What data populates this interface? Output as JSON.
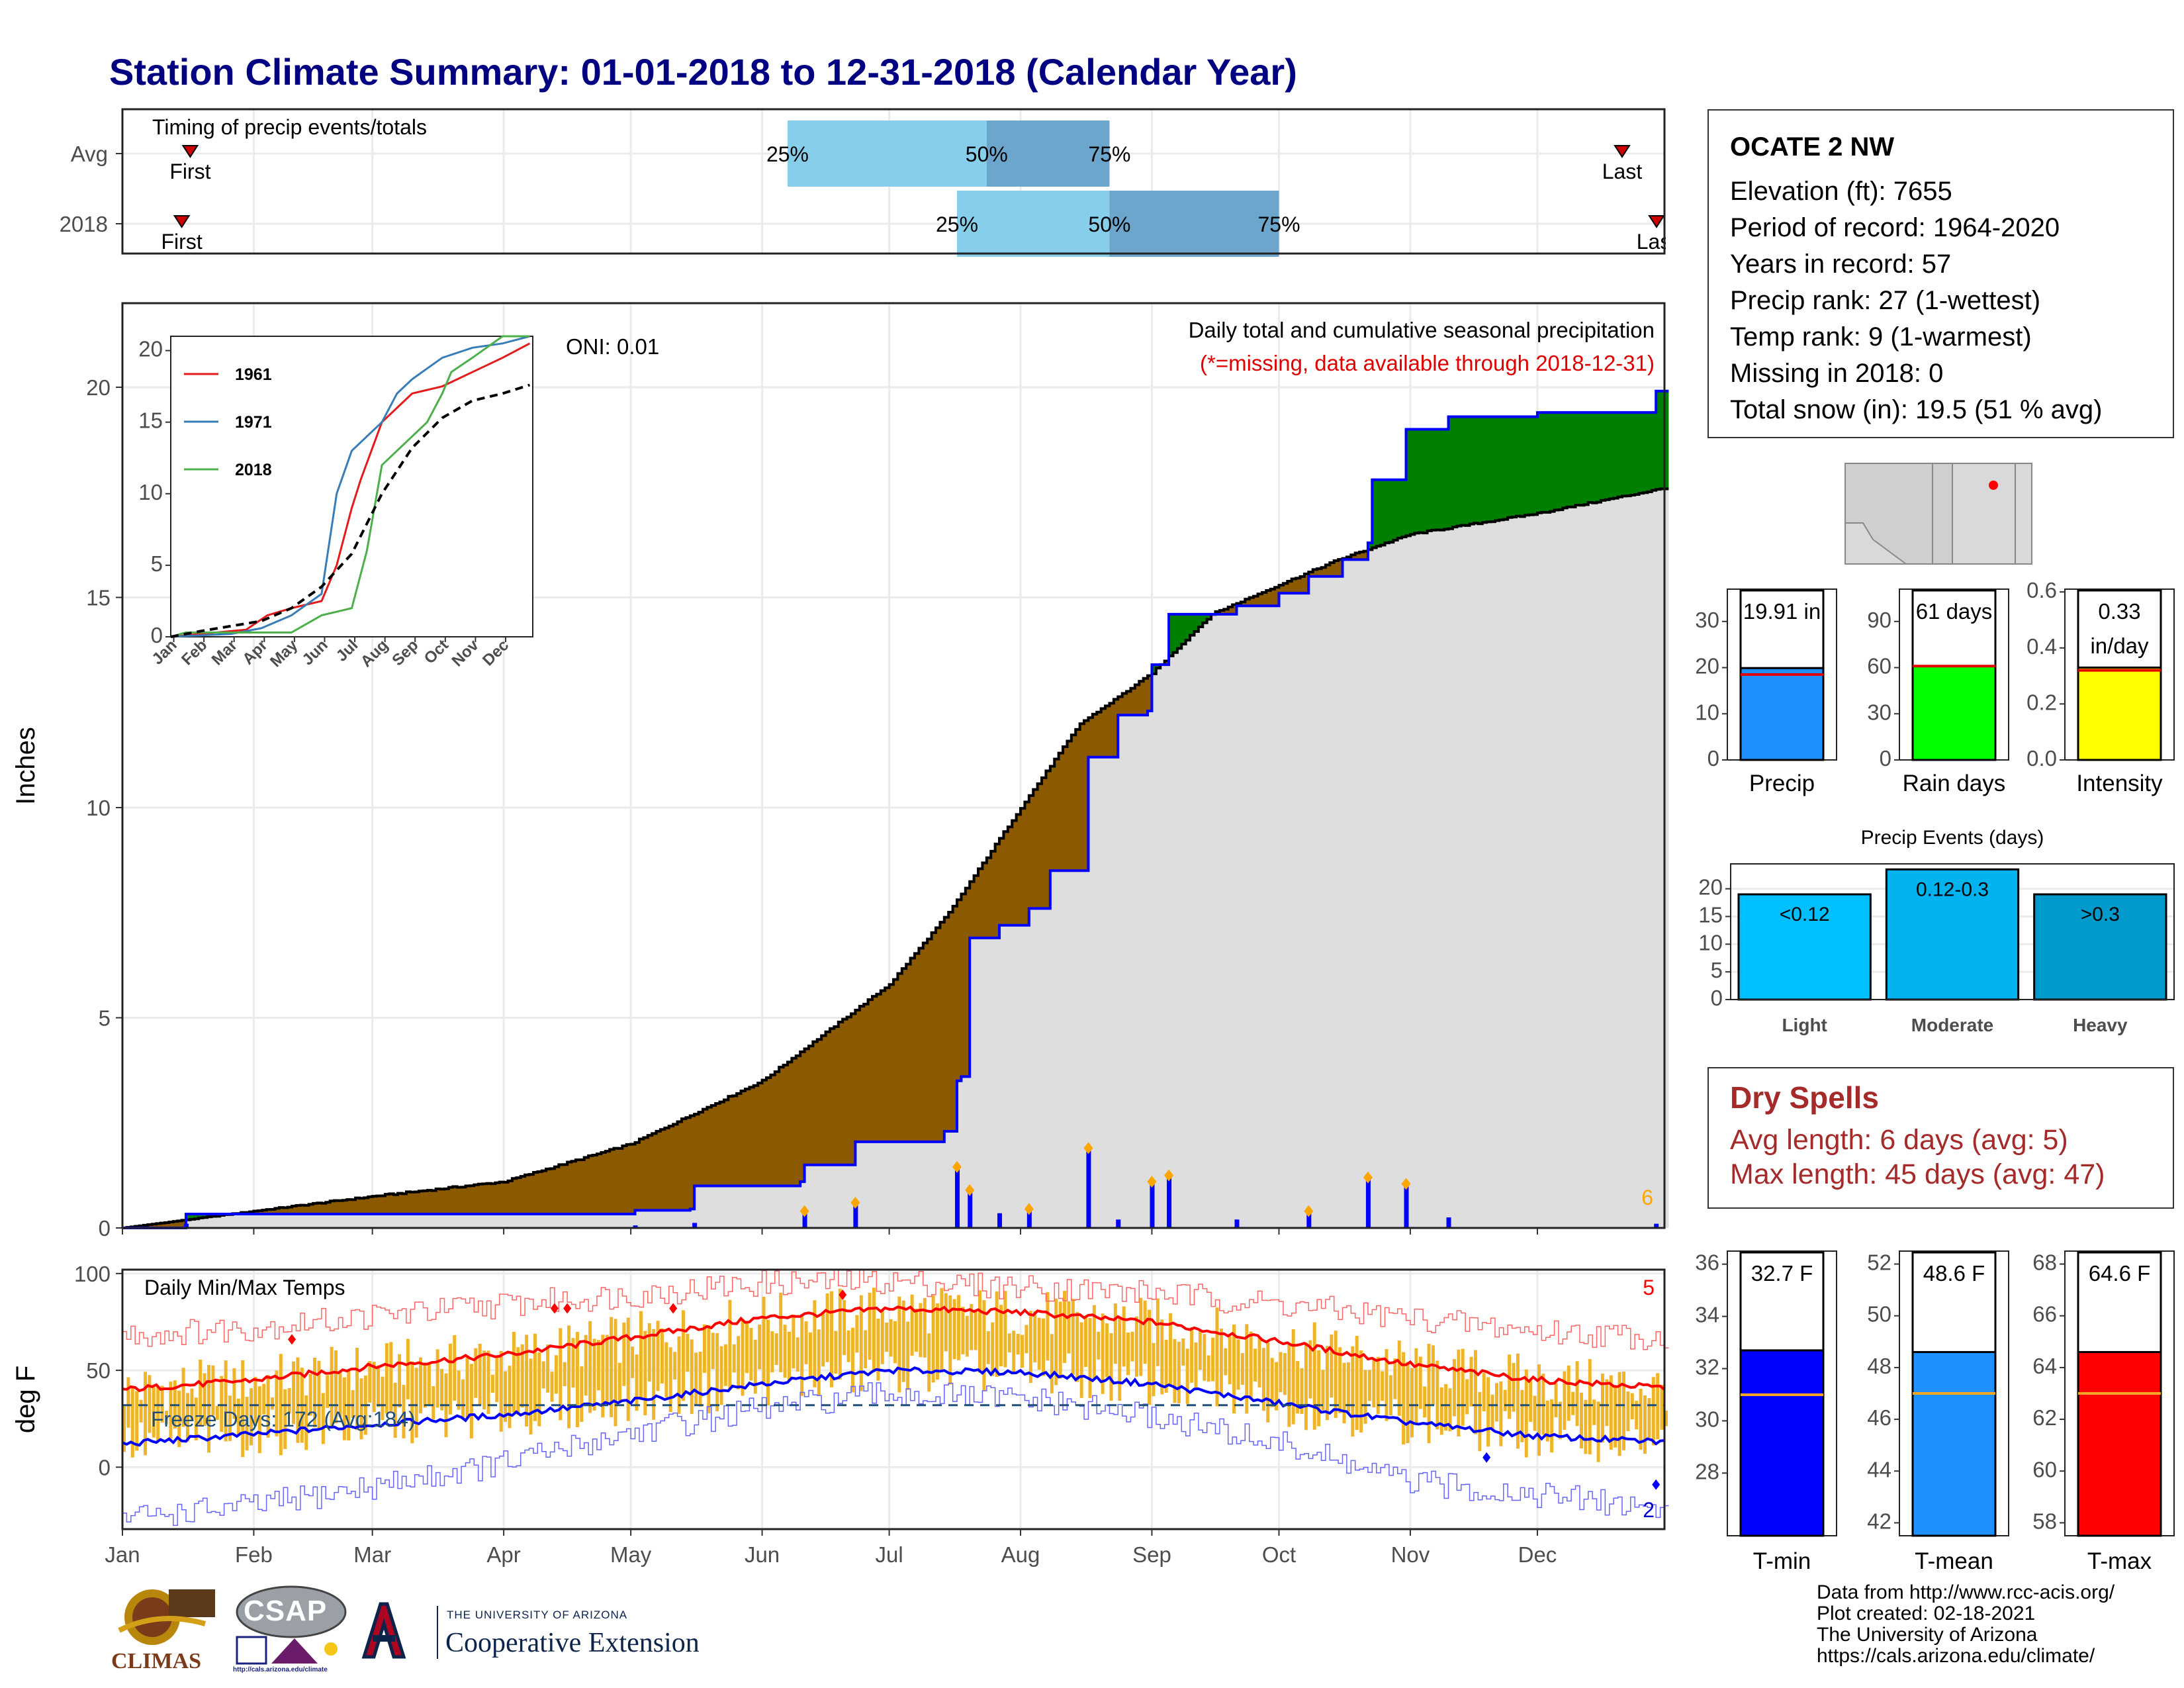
{
  "title": "Station Climate Summary: 01-01-2018 to 12-31-2018 (Calendar Year)",
  "timing": {
    "title": "Timing of precip events/totals",
    "row_labels": [
      "Avg",
      "2018"
    ],
    "pct_labels": [
      "25%",
      "50%",
      "75%"
    ],
    "first_label": "First",
    "last_label": "Last",
    "rows": [
      {
        "name": "Avg",
        "first": "01-17",
        "p25": "06-07",
        "p50": "07-24",
        "p75": "08-22",
        "last": "12-21"
      },
      {
        "name": "2018",
        "first": "01-15",
        "p25": "07-17",
        "p50": "08-22",
        "p75": "10-01",
        "last": "12-31"
      }
    ],
    "colors": {
      "light": "#87ceeb",
      "mid": "#6ca6cd",
      "marker": "#cc0000"
    }
  },
  "chart_data": [
    {
      "type": "area",
      "title": "Daily total and cumulative seasonal precipitation",
      "subtitle": "(*=missing, data available through 2018-12-31)",
      "ylabel": "Inches",
      "ylim": [
        0,
        22
      ],
      "yticks": [
        0,
        5,
        10,
        15,
        20
      ],
      "xlim": [
        "2018-01-01",
        "2018-12-31"
      ],
      "x_tick_labels": [
        "Jan",
        "Feb",
        "Mar",
        "Apr",
        "May",
        "Jun",
        "Jul",
        "Aug",
        "Sep",
        "Oct",
        "Nov",
        "Dec"
      ],
      "oni_label": "ONI: 0.01",
      "corner_count": "6",
      "series": [
        {
          "kind": "average_cumulative",
          "color": "#000000",
          "points": [
            [
              "2018-01-01",
              0.0
            ],
            [
              "2018-02-01",
              0.4
            ],
            [
              "2018-03-01",
              0.75
            ],
            [
              "2018-04-01",
              1.1
            ],
            [
              "2018-05-01",
              2.0
            ],
            [
              "2018-06-01",
              3.5
            ],
            [
              "2018-07-01",
              5.8
            ],
            [
              "2018-07-15",
              7.5
            ],
            [
              "2018-08-01",
              10.0
            ],
            [
              "2018-08-15",
              12.0
            ],
            [
              "2018-09-01",
              13.2
            ],
            [
              "2018-09-15",
              14.6
            ],
            [
              "2018-10-01",
              15.3
            ],
            [
              "2018-10-15",
              15.9
            ],
            [
              "2018-11-01",
              16.5
            ],
            [
              "2018-12-01",
              17.0
            ],
            [
              "2018-12-31",
              17.6
            ]
          ]
        },
        {
          "kind": "cumulative_2018",
          "color": "#0000ff",
          "points": [
            [
              "2018-01-01",
              0.0
            ],
            [
              "2018-01-15",
              0.0
            ],
            [
              "2018-01-16",
              0.33
            ],
            [
              "2018-05-01",
              0.33
            ],
            [
              "2018-05-02",
              0.42
            ],
            [
              "2018-05-15",
              0.45
            ],
            [
              "2018-05-16",
              1.0
            ],
            [
              "2018-06-10",
              1.1
            ],
            [
              "2018-06-11",
              1.5
            ],
            [
              "2018-06-22",
              1.5
            ],
            [
              "2018-06-23",
              2.05
            ],
            [
              "2018-07-13",
              2.05
            ],
            [
              "2018-07-14",
              2.3
            ],
            [
              "2018-07-17",
              3.5
            ],
            [
              "2018-07-18",
              3.6
            ],
            [
              "2018-07-20",
              6.9
            ],
            [
              "2018-07-27",
              7.2
            ],
            [
              "2018-08-03",
              7.6
            ],
            [
              "2018-08-08",
              8.5
            ],
            [
              "2018-08-17",
              11.2
            ],
            [
              "2018-08-24",
              12.2
            ],
            [
              "2018-08-31",
              12.3
            ],
            [
              "2018-09-01",
              13.4
            ],
            [
              "2018-09-05",
              14.6
            ],
            [
              "2018-09-20",
              14.6
            ],
            [
              "2018-09-21",
              14.8
            ],
            [
              "2018-10-01",
              15.1
            ],
            [
              "2018-10-08",
              15.5
            ],
            [
              "2018-10-16",
              15.9
            ],
            [
              "2018-10-22",
              16.3
            ],
            [
              "2018-10-23",
              17.8
            ],
            [
              "2018-10-30",
              17.8
            ],
            [
              "2018-10-31",
              19.0
            ],
            [
              "2018-11-09",
              19.0
            ],
            [
              "2018-11-10",
              19.3
            ],
            [
              "2018-12-01",
              19.4
            ],
            [
              "2018-12-28",
              19.4
            ],
            [
              "2018-12-29",
              19.91
            ]
          ]
        },
        {
          "kind": "above_average_fill",
          "color": "#008000"
        },
        {
          "kind": "below_average_fill",
          "color": "#8b5a00"
        }
      ],
      "daily_bars": {
        "color": "#0000ff",
        "marker_color": "#ffa500",
        "values": [
          [
            "2018-01-16",
            0.1
          ],
          [
            "2018-05-02",
            0.06
          ],
          [
            "2018-05-16",
            0.12
          ],
          [
            "2018-06-11",
            0.4
          ],
          [
            "2018-06-23",
            0.6
          ],
          [
            "2018-07-17",
            1.45
          ],
          [
            "2018-07-20",
            0.9
          ],
          [
            "2018-07-27",
            0.35
          ],
          [
            "2018-08-03",
            0.45
          ],
          [
            "2018-08-17",
            1.9
          ],
          [
            "2018-08-24",
            0.2
          ],
          [
            "2018-09-01",
            1.1
          ],
          [
            "2018-09-05",
            1.25
          ],
          [
            "2018-09-21",
            0.2
          ],
          [
            "2018-10-08",
            0.4
          ],
          [
            "2018-10-22",
            1.2
          ],
          [
            "2018-10-31",
            1.05
          ],
          [
            "2018-11-10",
            0.25
          ],
          [
            "2018-12-29",
            0.1
          ]
        ]
      }
    },
    {
      "type": "line",
      "title": "Daily Min/Max Temps",
      "ylabel": "deg F",
      "ylim": [
        -32,
        102
      ],
      "yticks": [
        0,
        50,
        100
      ],
      "x_tick_labels": [
        "Jan",
        "Feb",
        "Mar",
        "Apr",
        "May",
        "Jun",
        "Jul",
        "Aug",
        "Sep",
        "Oct",
        "Nov",
        "Dec"
      ],
      "freeze_label": "Freeze Days: 172 (Avg:184)",
      "freeze_line": 32,
      "record_high_count": "5",
      "record_low_count": "2",
      "series": [
        {
          "name": "avg_max",
          "color": "#ff0000",
          "points": [
            [
              "2018-01-01",
              40
            ],
            [
              "2018-02-01",
              45
            ],
            [
              "2018-03-01",
              52
            ],
            [
              "2018-04-01",
              58
            ],
            [
              "2018-05-01",
              67
            ],
            [
              "2018-06-01",
              77
            ],
            [
              "2018-07-01",
              82
            ],
            [
              "2018-08-01",
              80
            ],
            [
              "2018-09-01",
              75
            ],
            [
              "2018-10-01",
              65
            ],
            [
              "2018-11-01",
              53
            ],
            [
              "2018-12-01",
              45
            ],
            [
              "2018-12-31",
              41
            ]
          ]
        },
        {
          "name": "avg_min",
          "color": "#0000ff",
          "points": [
            [
              "2018-01-01",
              12
            ],
            [
              "2018-02-01",
              17
            ],
            [
              "2018-03-01",
              22
            ],
            [
              "2018-04-01",
              27
            ],
            [
              "2018-05-01",
              34
            ],
            [
              "2018-06-01",
              43
            ],
            [
              "2018-07-01",
              50
            ],
            [
              "2018-08-01",
              49
            ],
            [
              "2018-09-01",
              43
            ],
            [
              "2018-10-01",
              33
            ],
            [
              "2018-11-01",
              23
            ],
            [
              "2018-12-01",
              16
            ],
            [
              "2018-12-31",
              13
            ]
          ]
        },
        {
          "name": "record_max",
          "color": "#ff6666",
          "points": [
            [
              "2018-01-01",
              68
            ],
            [
              "2018-02-01",
              72
            ],
            [
              "2018-03-01",
              78
            ],
            [
              "2018-04-01",
              84
            ],
            [
              "2018-05-01",
              89
            ],
            [
              "2018-06-01",
              95
            ],
            [
              "2018-07-01",
              96
            ],
            [
              "2018-08-01",
              93
            ],
            [
              "2018-09-01",
              90
            ],
            [
              "2018-10-01",
              84
            ],
            [
              "2018-11-01",
              77
            ],
            [
              "2018-12-01",
              70
            ],
            [
              "2018-12-31",
              67
            ]
          ]
        },
        {
          "name": "record_min",
          "color": "#6666ff",
          "points": [
            [
              "2018-01-01",
              -26
            ],
            [
              "2018-02-01",
              -20
            ],
            [
              "2018-03-01",
              -10
            ],
            [
              "2018-04-01",
              2
            ],
            [
              "2018-05-01",
              18
            ],
            [
              "2018-06-01",
              30
            ],
            [
              "2018-07-01",
              38
            ],
            [
              "2018-08-01",
              35
            ],
            [
              "2018-09-01",
              26
            ],
            [
              "2018-10-01",
              12
            ],
            [
              "2018-11-01",
              -8
            ],
            [
              "2018-12-01",
              -14
            ],
            [
              "2018-12-31",
              -22
            ]
          ]
        }
      ],
      "daily_range_color": "#f0b429"
    }
  ],
  "inset": {
    "ylim": [
      0,
      21
    ],
    "yticks": [
      0,
      5,
      10,
      15,
      20
    ],
    "month_labels": [
      "Jan",
      "Feb",
      "Mar",
      "Apr",
      "May",
      "Jun",
      "Jul",
      "Aug",
      "Sep",
      "Oct",
      "Nov",
      "Dec"
    ],
    "series": [
      {
        "name": "1961",
        "color": "#e41a1c",
        "points": [
          [
            0,
            0
          ],
          [
            1.5,
            0.3
          ],
          [
            2.5,
            0.5
          ],
          [
            3.2,
            1.5
          ],
          [
            4,
            2
          ],
          [
            5,
            2.5
          ],
          [
            5.5,
            5
          ],
          [
            6,
            9
          ],
          [
            6.3,
            11
          ],
          [
            7,
            15
          ],
          [
            8,
            17
          ],
          [
            9,
            17.5
          ],
          [
            10,
            18.5
          ],
          [
            11,
            19.5
          ],
          [
            11.9,
            20.5
          ]
        ]
      },
      {
        "name": "1971",
        "color": "#377eb8",
        "points": [
          [
            0,
            0
          ],
          [
            2,
            0.2
          ],
          [
            3,
            0.6
          ],
          [
            4,
            1.5
          ],
          [
            5,
            3
          ],
          [
            5.5,
            10
          ],
          [
            6,
            13
          ],
          [
            6.5,
            14
          ],
          [
            7,
            15
          ],
          [
            7.5,
            17
          ],
          [
            8,
            18
          ],
          [
            9,
            19.5
          ],
          [
            10,
            20.2
          ],
          [
            11,
            20.5
          ],
          [
            11.9,
            21
          ]
        ]
      },
      {
        "name": "2018",
        "color": "#4daf4a",
        "points": [
          [
            0,
            0
          ],
          [
            0.5,
            0.3
          ],
          [
            4,
            0.3
          ],
          [
            5,
            1.5
          ],
          [
            6,
            2
          ],
          [
            6.5,
            6
          ],
          [
            7,
            12
          ],
          [
            7.5,
            13
          ],
          [
            8,
            14
          ],
          [
            8.5,
            15
          ],
          [
            9,
            17
          ],
          [
            9.3,
            18.5
          ],
          [
            10,
            19.5
          ],
          [
            11,
            21
          ],
          [
            11.9,
            21
          ]
        ]
      },
      {
        "name": "avg",
        "color": "#000000",
        "points": [
          [
            0,
            0
          ],
          [
            1,
            0.4
          ],
          [
            2,
            0.75
          ],
          [
            3,
            1.1
          ],
          [
            4,
            2
          ],
          [
            5,
            3.5
          ],
          [
            6,
            5.8
          ],
          [
            7,
            10
          ],
          [
            8,
            13.2
          ],
          [
            9,
            15.3
          ],
          [
            10,
            16.5
          ],
          [
            11,
            17
          ],
          [
            11.9,
            17.6
          ]
        ]
      }
    ]
  },
  "station": {
    "name": "OCATE 2 NW",
    "lines": [
      "Elevation (ft): 7655",
      "Period of record: 1964-2020",
      "Years in record: 57",
      "Precip rank: 27 (1-wettest)",
      "Temp rank: 9 (1-warmest)",
      "Missing in 2018: 0",
      "Total snow (in): 19.5 (51 % avg)"
    ]
  },
  "summary_bars": [
    {
      "label": "Precip",
      "value_text": "19.91 in",
      "value": 19.91,
      "avg": 18.5,
      "ylim": [
        0,
        37
      ],
      "ticks": [
        0,
        10,
        20,
        30
      ],
      "color": "#1e90ff"
    },
    {
      "label": "Rain days",
      "value_text": "61 days",
      "value": 61,
      "avg": 61,
      "ylim": [
        0,
        111
      ],
      "ticks": [
        0,
        30,
        60,
        90
      ],
      "color": "#00ff00"
    },
    {
      "label": "Intensity",
      "value_text": "0.33\nin/day",
      "value": 0.33,
      "avg": 0.32,
      "ylim": [
        0,
        0.61
      ],
      "ticks": [
        "0.0",
        "0.2",
        "0.4",
        "0.6"
      ],
      "color": "#ffff00"
    }
  ],
  "precip_events": {
    "title": "Precip Events (days)",
    "ylim": [
      0,
      24.5
    ],
    "ticks": [
      0,
      5,
      10,
      15,
      20
    ],
    "bars": [
      {
        "label": "Light",
        "range": "<0.12",
        "value": 19,
        "color": "#00bfff"
      },
      {
        "label": "Moderate",
        "range": "0.12-0.3",
        "value": 23.5,
        "color": "#00b2ee"
      },
      {
        "label": "Heavy",
        "range": ">0.3",
        "value": 19,
        "color": "#009acd"
      }
    ]
  },
  "dry_spells": {
    "title": "Dry Spells",
    "lines": [
      "Avg length: 6 days (avg: 5)",
      "Max length: 45 days (avg: 47)"
    ]
  },
  "temp_bars": [
    {
      "label": "T-min",
      "value_text": "32.7 F",
      "value": 32.7,
      "avg": 31,
      "ylim": [
        25.6,
        36.5
      ],
      "ticks": [
        28,
        30,
        32,
        34,
        36
      ],
      "color": "#0000ff"
    },
    {
      "label": "T-mean",
      "value_text": "48.6 F",
      "value": 48.6,
      "avg": 47,
      "ylim": [
        41.5,
        52.5
      ],
      "ticks": [
        42,
        44,
        46,
        48,
        50,
        52
      ],
      "color": "#1e90ff"
    },
    {
      "label": "T-max",
      "value_text": "64.6 F",
      "value": 64.6,
      "avg": 63,
      "ylim": [
        57.5,
        68.5
      ],
      "ticks": [
        58,
        60,
        62,
        64,
        66,
        68
      ],
      "color": "#ff0000"
    }
  ],
  "footer": {
    "lines": [
      "Data from http://www.rcc-acis.org/",
      "Plot created: 02-18-2021",
      "The University of Arizona",
      "https://cals.arizona.edu/climate/"
    ],
    "logos": {
      "climas": "CLIMAS",
      "csap": "CSAP",
      "csap_url": "http://cals.arizona.edu/climate",
      "ua_small": "THE UNIVERSITY OF ARIZONA",
      "ua_ext": "Cooperative Extension"
    }
  }
}
